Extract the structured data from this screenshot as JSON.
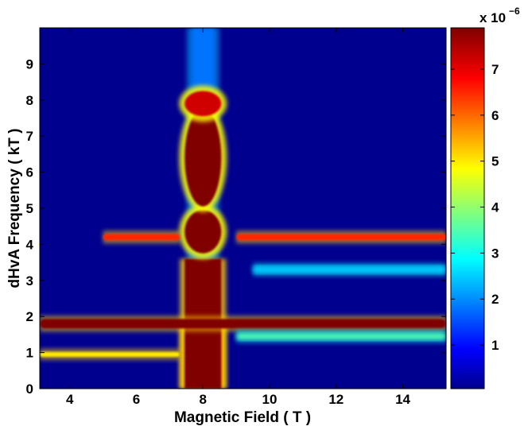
{
  "chart_data": {
    "type": "heatmap",
    "title": "",
    "xlabel": "Magnetic Field ( T )",
    "ylabel": "dHvA Frequency ( kT )",
    "xlim": [
      3.1,
      15.3
    ],
    "ylim": [
      0,
      10
    ],
    "x_ticks": [
      4,
      6,
      8,
      10,
      12,
      14
    ],
    "x_tick_labels": [
      "4",
      "6",
      "8",
      "10",
      "12",
      "14"
    ],
    "y_ticks": [
      0,
      1,
      2,
      3,
      4,
      5,
      6,
      7,
      8,
      9
    ],
    "y_tick_labels": [
      "0",
      "1",
      "2",
      "3",
      "4",
      "5",
      "6",
      "7",
      "8",
      "9"
    ],
    "colorbar": {
      "colormap": "jet",
      "range": [
        0.05,
        7.9
      ],
      "ticks": [
        1,
        2,
        3,
        4,
        5,
        6,
        7
      ],
      "tick_labels": [
        "1",
        "2",
        "3",
        "4",
        "5",
        "6",
        "7"
      ],
      "multiplier_base": "x 10",
      "multiplier_exponent": "−6"
    },
    "features": [
      {
        "kind": "vertical-band",
        "x_center": 8.0,
        "y_range": [
          0,
          10
        ],
        "value": 1.8
      },
      {
        "kind": "vertical-band",
        "x_center": 8.0,
        "y_range": [
          0,
          3.6
        ],
        "value": 7.9
      },
      {
        "kind": "vertical-band",
        "x_center": 8.0,
        "y_range": [
          0,
          1.8
        ],
        "value": 7.9
      },
      {
        "kind": "blob",
        "x_center": 8.0,
        "y_center": 4.35,
        "value": 7.9
      },
      {
        "kind": "blob",
        "x_center": 8.0,
        "y_center": 6.4,
        "value": 7.9
      },
      {
        "kind": "blob",
        "x_center": 8.0,
        "y_center": 7.9,
        "value": 7.2
      },
      {
        "kind": "horizontal-band",
        "y": 1.8,
        "x_range": [
          3.1,
          15.3
        ],
        "value": 7.9
      },
      {
        "kind": "horizontal-band",
        "y": 4.2,
        "x_range": [
          5.0,
          7.3
        ],
        "value": 6.5
      },
      {
        "kind": "horizontal-band",
        "y": 4.2,
        "x_range": [
          9.0,
          15.3
        ],
        "value": 6.5
      },
      {
        "kind": "horizontal-band",
        "y": 0.95,
        "x_range": [
          3.1,
          7.3
        ],
        "value": 5.0
      },
      {
        "kind": "horizontal-band",
        "y": 1.45,
        "x_range": [
          9.0,
          15.3
        ],
        "value": 3.5
      },
      {
        "kind": "horizontal-band",
        "y": 3.3,
        "x_range": [
          9.5,
          15.3
        ],
        "value": 2.5
      }
    ]
  }
}
